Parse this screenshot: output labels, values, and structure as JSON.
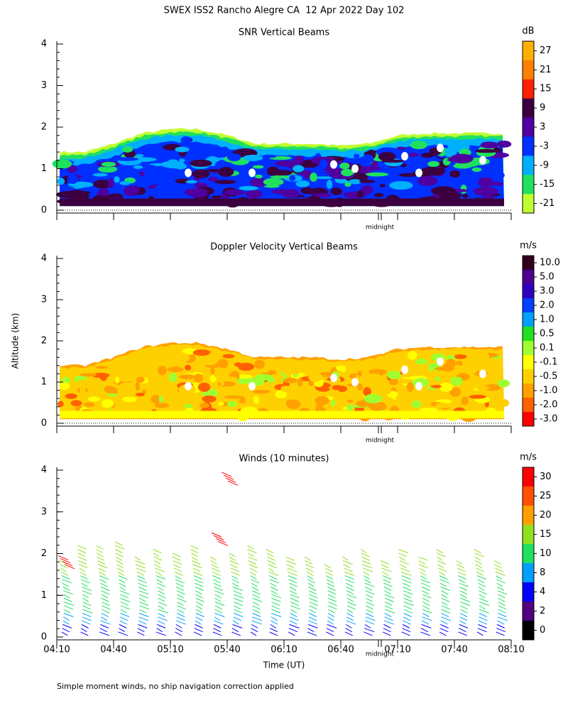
{
  "title": "SWEX ISS2 Rancho Alegre CA  12 Apr 2022 Day 102",
  "y_label": "Altitude (km)",
  "x_label": "Time (UT)",
  "footnote": "Simple moment winds, no ship navigation correction applied",
  "x_ticks": [
    "04:10",
    "04:40",
    "05:10",
    "05:40",
    "06:10",
    "06:40",
    "07:10",
    "07:40",
    "08:10"
  ],
  "panels": [
    {
      "title": "SNR Vertical Beams",
      "unit": "dB",
      "marker": "midnight",
      "ylim": [
        0,
        4
      ],
      "yticks": [
        0,
        1,
        2,
        3,
        4
      ],
      "colorbar": {
        "labels": [
          27,
          21,
          15,
          9,
          3,
          -3,
          -9,
          -15,
          -21
        ],
        "colors": [
          "#ffb000",
          "#ff8000",
          "#ff2000",
          "#3c0040",
          "#5000a0",
          "#0030ff",
          "#00b0ff",
          "#20e060",
          "#c0ff30"
        ]
      }
    },
    {
      "title": "Doppler Velocity Vertical Beams",
      "unit": "m/s",
      "marker": "midnight",
      "ylim": [
        0,
        4
      ],
      "yticks": [
        0,
        1,
        2,
        3,
        4
      ],
      "colorbar": {
        "labels": [
          "10.0",
          "5.0",
          "3.0",
          "2.0",
          "1.0",
          "0.5",
          "0.1",
          "-0.1",
          "-0.5",
          "-1.0",
          "-2.0",
          "-3.0"
        ],
        "colors": [
          "#300020",
          "#500090",
          "#3000c0",
          "#0040ff",
          "#00a0ff",
          "#20e020",
          "#a0ff30",
          "#ffff00",
          "#ffd000",
          "#ffa000",
          "#ff6000",
          "#ff0000"
        ]
      }
    },
    {
      "title": "Winds (10 minutes)",
      "unit": "m/s",
      "marker": "midnight",
      "ylim": [
        0,
        4
      ],
      "yticks": [
        0,
        1,
        2,
        3,
        4
      ],
      "colorbar": {
        "labels": [
          30,
          25,
          20,
          15,
          10,
          8,
          4,
          2,
          0
        ],
        "colors": [
          "#ff0000",
          "#ff5000",
          "#ffa000",
          "#90e020",
          "#20e060",
          "#00a0ff",
          "#0000ff",
          "#500080",
          "#000000"
        ]
      }
    }
  ]
}
